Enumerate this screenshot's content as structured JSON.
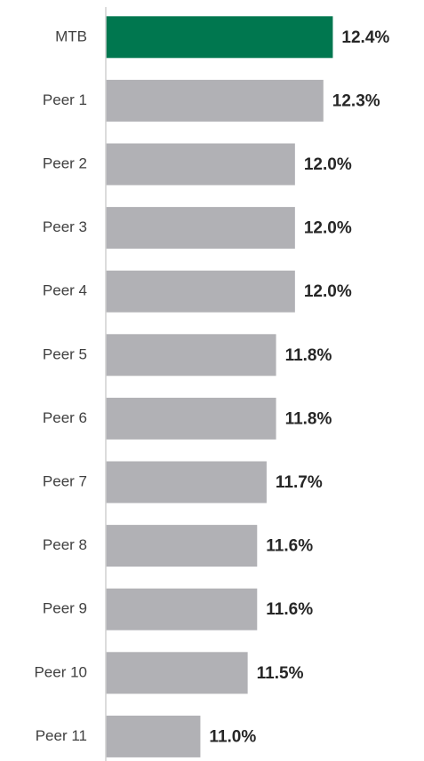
{
  "chart_data": {
    "type": "bar",
    "orientation": "horizontal",
    "categories": [
      "MTB",
      "Peer 1",
      "Peer 2",
      "Peer 3",
      "Peer 4",
      "Peer 5",
      "Peer 6",
      "Peer 7",
      "Peer 8",
      "Peer 9",
      "Peer 10",
      "Peer 11"
    ],
    "values": [
      12.4,
      12.3,
      12.0,
      12.0,
      12.0,
      11.8,
      11.8,
      11.7,
      11.6,
      11.6,
      11.5,
      11.0
    ],
    "value_labels": [
      "12.4%",
      "12.3%",
      "12.0%",
      "12.0%",
      "12.0%",
      "11.8%",
      "11.8%",
      "11.7%",
      "11.6%",
      "11.6%",
      "11.5%",
      "11.0%"
    ],
    "colors": [
      "#00774f",
      "#b1b1b5",
      "#b1b1b5",
      "#b1b1b5",
      "#b1b1b5",
      "#b1b1b5",
      "#b1b1b5",
      "#b1b1b5",
      "#b1b1b5",
      "#b1b1b5",
      "#b1b1b5",
      "#b1b1b5"
    ],
    "xlim": [
      10,
      12.8
    ]
  }
}
